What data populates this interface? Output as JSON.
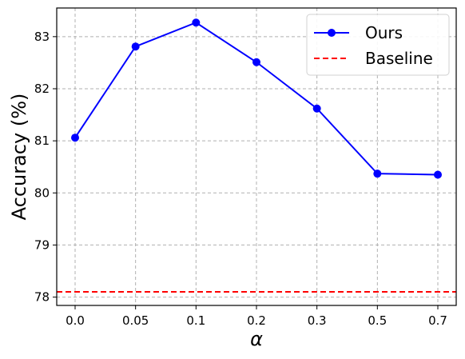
{
  "chart_data": {
    "type": "line",
    "categories": [
      "0.0",
      "0.05",
      "0.1",
      "0.2",
      "0.3",
      "0.5",
      "0.7"
    ],
    "series": [
      {
        "name": "Ours",
        "values": [
          81.06,
          82.81,
          83.27,
          82.51,
          81.62,
          80.37,
          80.35
        ],
        "color": "#0000ff",
        "marker": "circle"
      }
    ],
    "baseline": {
      "name": "Baseline",
      "value": 78.1,
      "color": "#ff0000",
      "style": "dashed"
    },
    "xlabel": "α",
    "ylabel": "Accuracy (%)",
    "ylim": [
      77.84,
      83.55
    ],
    "yticks": [
      78,
      79,
      80,
      81,
      82,
      83
    ],
    "grid": true,
    "legend_position": "top-right"
  }
}
